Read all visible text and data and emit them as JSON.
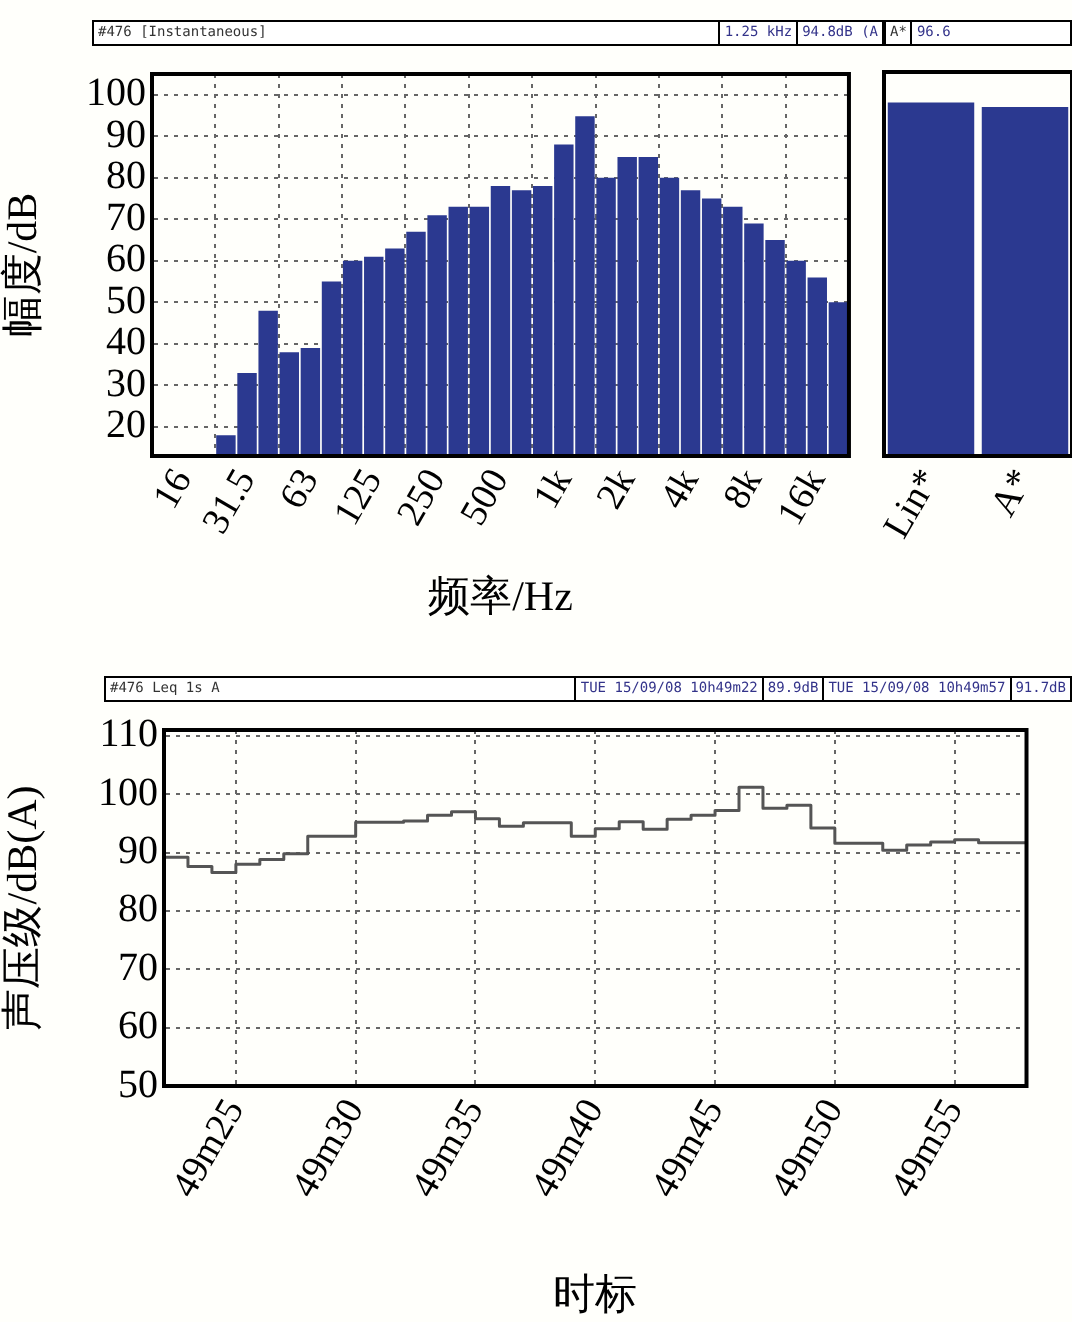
{
  "chart_data": [
    {
      "type": "bar",
      "xlabel": "频率/Hz",
      "ylabel": "幅度/dB",
      "annotations": [
        "#476 [Instantaneous]",
        "1.25 kHz",
        "94.8dB (A"
      ],
      "categories": [
        null,
        "16",
        null,
        null,
        "31.5",
        null,
        null,
        "63",
        null,
        null,
        "125",
        null,
        null,
        "250",
        null,
        null,
        "500",
        null,
        null,
        "1k",
        null,
        null,
        "2k",
        null,
        null,
        "4k",
        null,
        null,
        "8k",
        null,
        null,
        "16k",
        null
      ],
      "values": [
        null,
        null,
        null,
        18,
        33,
        48,
        38,
        39,
        55,
        60,
        61,
        63,
        67,
        71,
        73,
        73,
        78,
        77,
        78,
        88,
        94.8,
        80,
        85,
        85,
        80,
        77,
        75,
        73,
        69,
        65,
        60,
        56,
        50
      ],
      "color": "#2b3990",
      "ylim": [
        13,
        105
      ],
      "yticks": [
        20,
        30,
        40,
        50,
        60,
        70,
        80,
        90,
        100
      ],
      "grid": true,
      "legend": false
    },
    {
      "type": "bar",
      "annotations": [
        "A*",
        "96.6"
      ],
      "categories": [
        "Lin*",
        "A*"
      ],
      "values": [
        97.7,
        96.6
      ],
      "color": "#2b3990",
      "ylim": [
        13,
        105
      ],
      "tick_labels": "x",
      "legend": false
    },
    {
      "type": "step",
      "xlabel": "时标",
      "ylabel": "声压级/dB(A)",
      "annotations": [
        "#476  Leq 1s  A",
        "TUE 15/09/08 10h49m22",
        "89.9dB",
        "TUE 15/09/08 10h49m57",
        "91.7dB"
      ],
      "categories": [
        null,
        null,
        null,
        "49m25",
        null,
        null,
        null,
        null,
        "49m30",
        null,
        null,
        null,
        null,
        "49m35",
        null,
        null,
        null,
        null,
        "49m40",
        null,
        null,
        null,
        null,
        "49m45",
        null,
        null,
        null,
        null,
        "49m50",
        null,
        null,
        null,
        null,
        "49m55",
        null,
        null,
        null
      ],
      "values": [
        89.9,
        89.2,
        87.6,
        86.6,
        88,
        88.8,
        89.8,
        92.8,
        92.8,
        95.2,
        95.2,
        95.4,
        96.4,
        97,
        95.8,
        94.5,
        95.1,
        95.1,
        92.8,
        94.1,
        95.3,
        94,
        95.7,
        96.4,
        97.2,
        101.2,
        97.6,
        98.1,
        94.2,
        91.6,
        91.6,
        90.4,
        91.3,
        91.8,
        92.2,
        91.7,
        91.7
      ],
      "color": "#555555",
      "ylim": [
        50,
        111
      ],
      "yticks": [
        50,
        60,
        70,
        80,
        90,
        100,
        110
      ],
      "grid": true,
      "legend": false
    }
  ]
}
